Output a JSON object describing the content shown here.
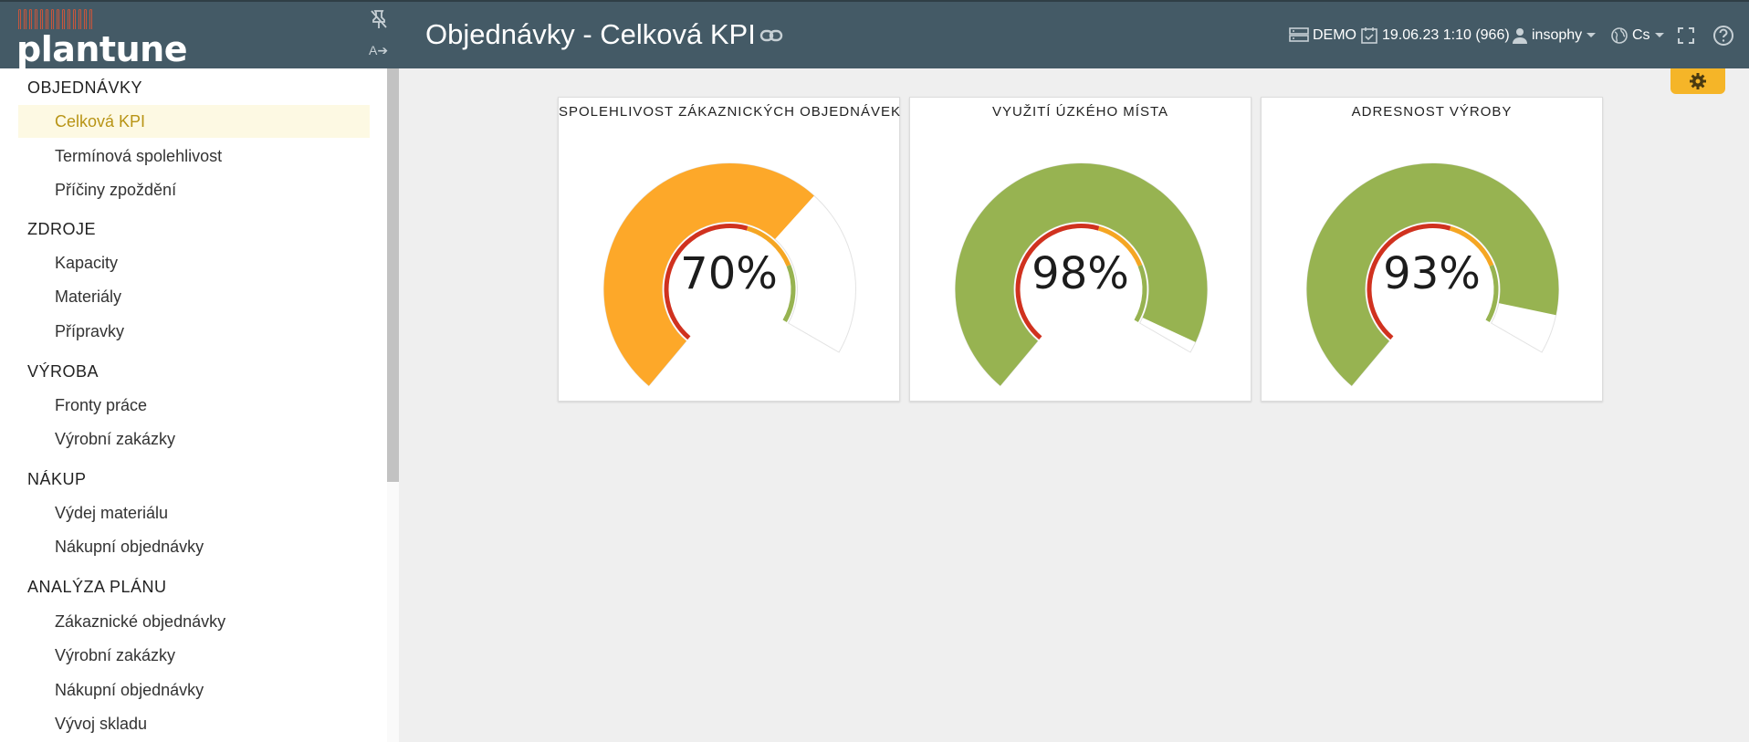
{
  "header": {
    "logo_text": "plantune",
    "title": "Objednávky - Celková KPI",
    "server": "DEMO",
    "date": "19.06.23 1:10 (966)",
    "user": "insophy",
    "language": "Cs",
    "icons": [
      "pin-off-icon",
      "translate-icon",
      "link-icon",
      "server-icon",
      "calendar-check-icon",
      "user-icon",
      "globe-icon",
      "fullscreen-icon",
      "help-icon",
      "gear-icon"
    ]
  },
  "sidebar": {
    "sections": [
      {
        "label": "OBJEDNÁVKY",
        "items": [
          "Celková KPI",
          "Termínová spolehlivost",
          "Příčiny zpoždění"
        ]
      },
      {
        "label": "ZDROJE",
        "items": [
          "Kapacity",
          "Materiály",
          "Přípravky"
        ]
      },
      {
        "label": "VÝROBA",
        "items": [
          "Fronty práce",
          "Výrobní zakázky"
        ]
      },
      {
        "label": "NÁKUP",
        "items": [
          "Výdej materiálu",
          "Nákupní objednávky"
        ]
      },
      {
        "label": "ANALÝZA PLÁNU",
        "items": [
          "Zákaznické objednávky",
          "Výrobní zakázky",
          "Nákupní objednávky",
          "Vývoj skladu"
        ]
      }
    ],
    "active_item": "Celková KPI"
  },
  "kpis": [
    {
      "title": "SPOLEHLIVOST ZÁKAZNICKÝCH OBJEDNÁVEK",
      "value": 70,
      "label": "70%",
      "color": "#fda829"
    },
    {
      "title": "VYUŽITÍ ÚZKÉHO MÍSTA",
      "value": 98,
      "label": "98%",
      "color": "#97b351"
    },
    {
      "title": "ADRESNOST VÝROBY",
      "value": 93,
      "label": "93%",
      "color": "#97b351"
    }
  ],
  "gauge_bands": {
    "red": "#d0321f",
    "orange": "#f5a623",
    "green": "#97b351",
    "red_to": 60,
    "orange_to": 80
  }
}
